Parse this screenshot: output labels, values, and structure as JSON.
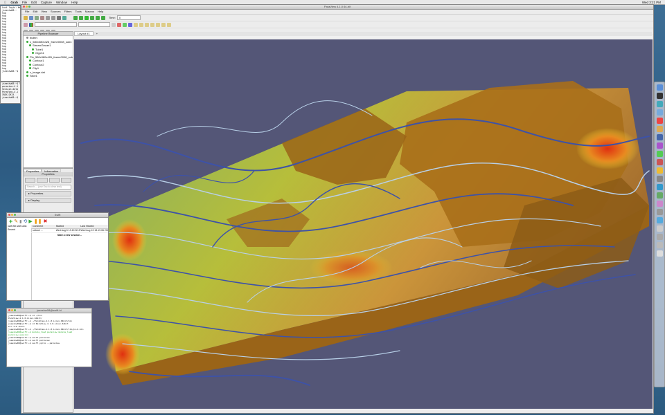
{
  "menubar": {
    "app": "Grab",
    "items": [
      "File",
      "Edit",
      "Capture",
      "Window",
      "Help"
    ],
    "clock": "Wed 3:21 PM"
  },
  "paraview": {
    "title": "ParaView 4.1.0 64-bit",
    "menu": [
      "File",
      "Edit",
      "View",
      "Sources",
      "Filters",
      "Tools",
      "Macros",
      "Help"
    ],
    "time_label": "Time:",
    "time_value": "0",
    "pipeline_title": "Pipeline Browser",
    "layout_tab": "Layout #1",
    "pipeline_items": [
      "builtin:",
      "c_580x380x426_frame0008_sub4",
      "StreamTracer1",
      "Tube1",
      "Glyph1",
      "Plo_580x380x426_frame0008_sub",
      "Contour1",
      "Contour2",
      "Clip1",
      "c_image.dat",
      "Slice1"
    ],
    "tabs": [
      "Properties",
      "Information"
    ],
    "properties_title": "Properties",
    "search_placeholder": "Search ... (use Esc to clear text)",
    "sections": [
      "Properties",
      "Display"
    ]
  },
  "swift_window": {
    "title": "Swift",
    "sidebar_item_1": "swift.file.stdf.stdio",
    "sidebar_item_2": "Recent",
    "columns": [
      "Comment",
      "Started",
      "Last Viewed"
    ],
    "row": [
      "sebrah ...",
      "Wed Aug 6 13:19:30 2014",
      "Wed Aug 13 13:19:06 2014"
    ],
    "start_label": "Start a new session..."
  },
  "terminal_small": {
    "lines": [
      "Last login: Wed",
      "jseeshw08:~ ",
      "tag",
      "tag",
      "tag",
      "tag",
      "tag",
      "tag",
      "tag",
      "tag",
      "tag",
      "tag",
      "tag",
      "tag",
      "tag",
      "tag",
      "tag",
      "tag",
      "tag",
      "tag",
      "tag",
      "tag",
      "tag",
      "jseeshw08:~$"
    ]
  },
  "terminal_small2": {
    "lines": [
      "jseeshw08:~$ ls",
      "paraview-4.1",
      "Session-data",
      "ParaView-4.1",
      "INDX-DATA",
      "jseeshw08:~$"
    ]
  },
  "terminal": {
    "title": "jseeshw08@swift-bi",
    "lines": [
      "jseeshw08@swift:~$ cd ~/bin",
      "ParaView-4.1.0-Linux-64bit/",
      "jseeshw08@swift:~$ ./ParaView-4.1.0-Linux-64bit/bin",
      "jseeshw08@swift:~$ cd ParaView-4.1.0-Linux-64bit",
      "bin  lib  share",
      "jseeshw08@swift:~$ ./ParaView-4.1.0-Linux-64bit/lib/pv-b.bin",
      "jseeshw08@swift:~$ module_load paraview  module_load paraview_session",
      "jseeshw08@swift:~$ swift.paraview",
      "",
      "jseeshw08@swift:~$ swift.paraview",
      "",
      "jseeshw08@swift:~$ swift-yprox --paraview"
    ]
  },
  "colors": {
    "viewport_bg": "#545677",
    "terrain": "#a86f1a",
    "stream_blue": "#3d52a8",
    "stream_light": "#b8d0e8",
    "hot": "#e03010"
  }
}
